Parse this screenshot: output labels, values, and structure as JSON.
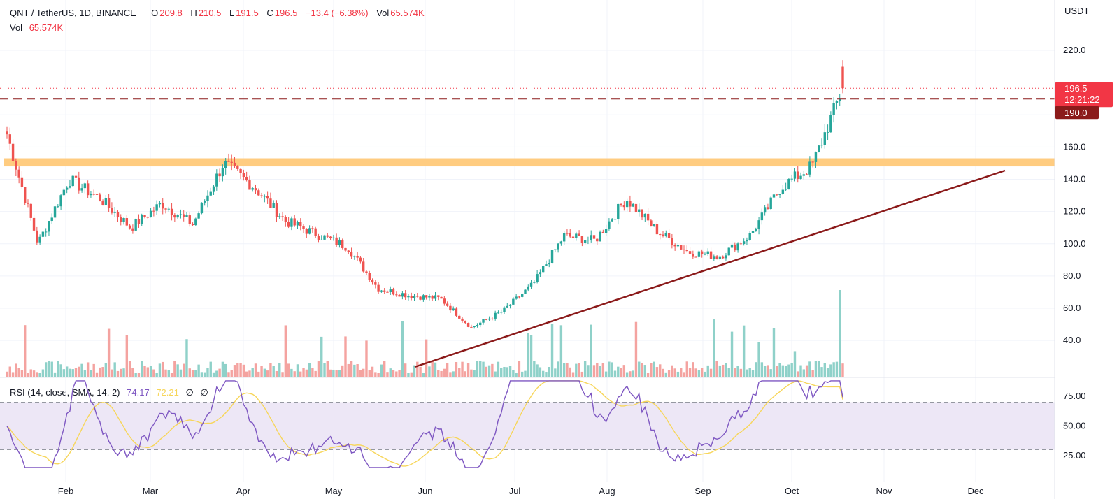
{
  "header": {
    "symbol": "QNT / TetherUS, 1D, BINANCE",
    "o_label": "O",
    "o_value": "209.8",
    "h_label": "H",
    "h_value": "210.5",
    "l_label": "L",
    "l_value": "191.5",
    "c_label": "C",
    "c_value": "196.5",
    "change": "−13.4 (−6.38%)",
    "vol_label": "Vol",
    "vol_value": "65.574K"
  },
  "vol_row": {
    "label": "Vol",
    "value": "65.574K"
  },
  "rsi_legend": {
    "label": "RSI (14, close, SMA, 14, 2)",
    "rsi_value": "74.17",
    "sma_value": "72.21",
    "hidden1": "∅",
    "hidden2": "∅"
  },
  "price_axis": {
    "unit": "USDT",
    "ticks": [
      "220.0",
      "160.0",
      "140.0",
      "120.0",
      "100.0",
      "80.0",
      "60.0",
      "40.0"
    ],
    "current_price": "196.5",
    "countdown": "12:21:22",
    "level_price": "190.0"
  },
  "rsi_axis": {
    "ticks": [
      "75.00",
      "50.00",
      "25.00"
    ]
  },
  "time_axis": {
    "ticks": [
      "Feb",
      "Mar",
      "Apr",
      "May",
      "Jun",
      "Jul",
      "Aug",
      "Sep",
      "Oct",
      "Nov",
      "Dec"
    ]
  },
  "colors": {
    "up": "#26a69a",
    "down": "#ef5350",
    "vol_up": "#8fd1c9",
    "vol_down": "#f4a3a0",
    "resistance_zone": "#ffcc80",
    "trendline": "#8b1a1a",
    "dashed_level": "#8b1a1a",
    "price_tag": "#f23645",
    "level_tag": "#8b1a1a",
    "rsi_line": "#7e57c2",
    "rsi_sma": "#f7d65a",
    "rsi_band": "#ede7f6"
  },
  "chart_data": {
    "type": "candlestick",
    "title": "QNT / TetherUS, 1D, BINANCE",
    "x_axis": [
      "Feb",
      "Mar",
      "Apr",
      "May",
      "Jun",
      "Jul",
      "Aug",
      "Sep",
      "Oct",
      "Nov",
      "Dec"
    ],
    "price_range": [
      27,
      245
    ],
    "price_ticks": [
      40,
      60,
      80,
      100,
      120,
      140,
      160,
      220
    ],
    "last_candle": {
      "open": 209.8,
      "high": 210.5,
      "low": 191.5,
      "close": 196.5,
      "volume": "65.574K"
    },
    "current_price": 196.5,
    "horizontal_level": 190.0,
    "resistance_zone": [
      148,
      153
    ],
    "trendline": {
      "start": [
        "Jun",
        26
      ],
      "end": [
        "Dec",
        147
      ]
    },
    "approx_closes_weekly": [
      {
        "period": "mid-Jan",
        "close": 168
      },
      {
        "period": "late-Jan",
        "close": 100
      },
      {
        "period": "early-Feb",
        "close": 140
      },
      {
        "period": "mid-Feb",
        "close": 128
      },
      {
        "period": "late-Feb",
        "close": 110
      },
      {
        "period": "early-Mar",
        "close": 125
      },
      {
        "period": "mid-Mar",
        "close": 112
      },
      {
        "period": "late-Mar",
        "close": 150
      },
      {
        "period": "early-Apr",
        "close": 135
      },
      {
        "period": "mid-Apr",
        "close": 114
      },
      {
        "period": "late-Apr",
        "close": 106
      },
      {
        "period": "early-May",
        "close": 98
      },
      {
        "period": "mid-May",
        "close": 72
      },
      {
        "period": "late-May",
        "close": 68
      },
      {
        "period": "early-Jun",
        "close": 66
      },
      {
        "period": "mid-Jun",
        "close": 48
      },
      {
        "period": "late-Jun",
        "close": 58
      },
      {
        "period": "early-Jul",
        "close": 75
      },
      {
        "period": "mid-Jul",
        "close": 105
      },
      {
        "period": "late-Jul",
        "close": 102
      },
      {
        "period": "early-Aug",
        "close": 128
      },
      {
        "period": "mid-Aug",
        "close": 108
      },
      {
        "period": "late-Aug",
        "close": 95
      },
      {
        "period": "early-Sep",
        "close": 92
      },
      {
        "period": "mid-Sep",
        "close": 105
      },
      {
        "period": "late-Sep",
        "close": 135
      },
      {
        "period": "early-Oct",
        "close": 148
      },
      {
        "period": "mid-Oct",
        "close": 196.5
      }
    ],
    "rsi": {
      "params": "RSI (14, close, SMA, 14, 2)",
      "value": 74.17,
      "sma": 72.21,
      "levels": [
        30,
        50,
        70
      ],
      "range": [
        15,
        90
      ],
      "ticks": [
        25,
        50,
        75
      ]
    }
  }
}
